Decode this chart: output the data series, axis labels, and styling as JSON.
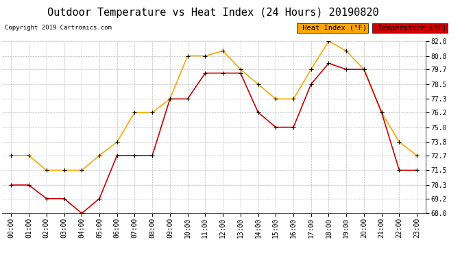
{
  "title": "Outdoor Temperature vs Heat Index (24 Hours) 20190820",
  "copyright": "Copyright 2019 Cartronics.com",
  "hours": [
    "00:00",
    "01:00",
    "02:00",
    "03:00",
    "04:00",
    "05:00",
    "06:00",
    "07:00",
    "08:00",
    "09:00",
    "10:00",
    "11:00",
    "12:00",
    "13:00",
    "14:00",
    "15:00",
    "16:00",
    "17:00",
    "18:00",
    "19:00",
    "20:00",
    "21:00",
    "22:00",
    "23:00"
  ],
  "heat_index": [
    72.7,
    72.7,
    71.5,
    71.5,
    71.5,
    72.7,
    73.8,
    76.2,
    76.2,
    77.3,
    80.8,
    80.8,
    81.2,
    79.7,
    78.5,
    77.3,
    77.3,
    79.7,
    82.0,
    81.2,
    79.7,
    76.2,
    73.8,
    72.7
  ],
  "temperature": [
    70.3,
    70.3,
    69.2,
    69.2,
    68.0,
    69.2,
    72.7,
    72.7,
    72.7,
    77.3,
    77.3,
    79.4,
    79.4,
    79.4,
    76.2,
    75.0,
    75.0,
    78.5,
    80.2,
    79.7,
    79.7,
    76.2,
    71.5,
    71.5
  ],
  "heat_index_color": "#FFA500",
  "temperature_color": "#CC0000",
  "marker_color": "#000000",
  "ylim_min": 68.0,
  "ylim_max": 82.0,
  "yticks": [
    68.0,
    69.2,
    70.3,
    71.5,
    72.7,
    73.8,
    75.0,
    76.2,
    77.3,
    78.5,
    79.7,
    80.8,
    82.0
  ],
  "background_color": "#ffffff",
  "grid_color": "#bbbbbb",
  "legend_heat_index_bg": "#FFA500",
  "legend_temperature_bg": "#CC0000",
  "title_fontsize": 11,
  "copyright_fontsize": 6.5,
  "tick_fontsize": 7,
  "legend_fontsize": 7.5
}
